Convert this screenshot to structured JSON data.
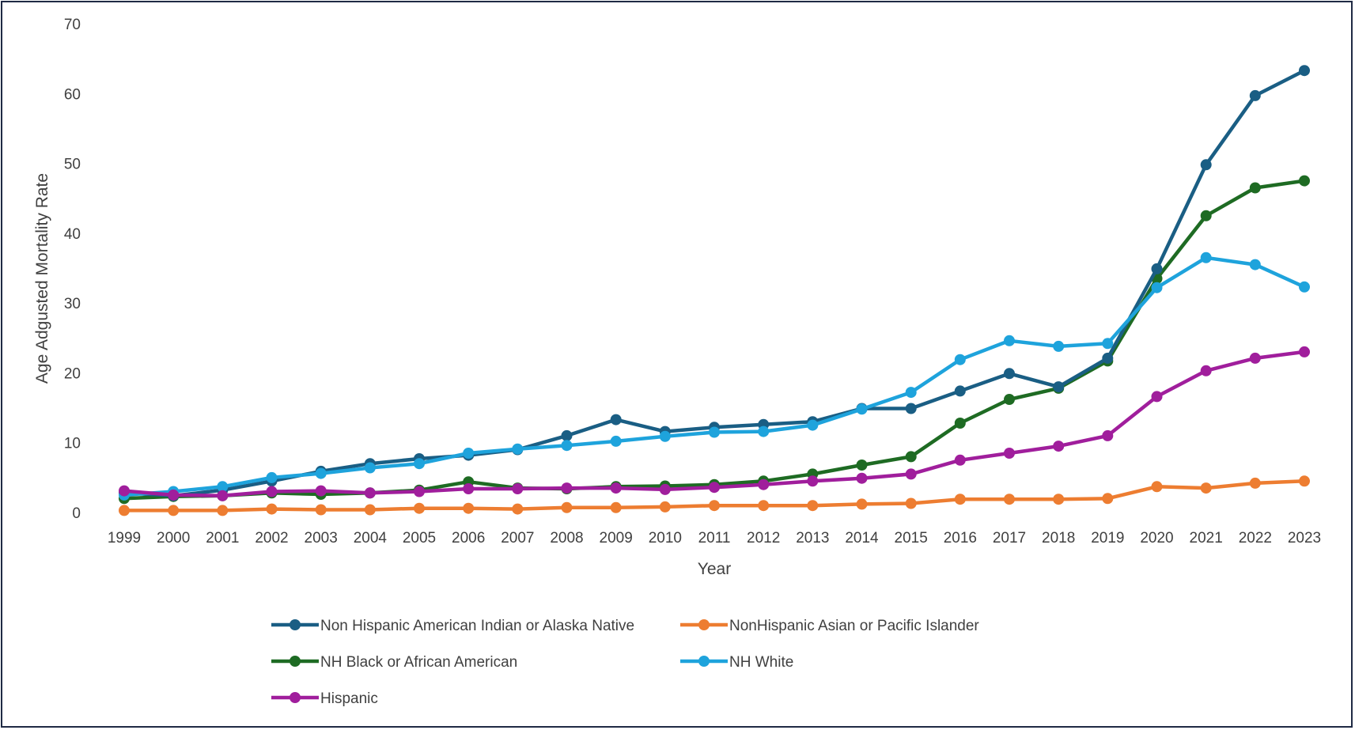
{
  "chart_data": {
    "type": "line",
    "title": "",
    "xlabel": "Year",
    "ylabel": "Age Adgusted Mortality Rate",
    "ylim": [
      0,
      70
    ],
    "yticks": [
      0,
      10,
      20,
      30,
      40,
      50,
      60,
      70
    ],
    "grid": false,
    "legend_position": "bottom",
    "categories": [
      "1999",
      "2000",
      "2001",
      "2002",
      "2003",
      "2004",
      "2005",
      "2006",
      "2007",
      "2008",
      "2009",
      "2010",
      "2011",
      "2012",
      "2013",
      "2014",
      "2015",
      "2016",
      "2017",
      "2018",
      "2019",
      "2020",
      "2021",
      "2022",
      "2023"
    ],
    "series": [
      {
        "name": "Non Hispanic American Indian or Alaska Native",
        "color": "#1a5e84",
        "values": [
          2.8,
          2.4,
          3.2,
          4.5,
          5.9,
          7.0,
          7.7,
          8.2,
          9.0,
          11.0,
          13.3,
          11.6,
          12.2,
          12.6,
          13.0,
          14.9,
          14.9,
          17.4,
          19.9,
          18.0,
          22.1,
          34.9,
          49.8,
          59.7,
          63.3
        ]
      },
      {
        "name": "NonHispanic Asian or Pacific Islander",
        "color": "#ed7d31",
        "values": [
          0.3,
          0.3,
          0.3,
          0.5,
          0.4,
          0.4,
          0.6,
          0.6,
          0.5,
          0.7,
          0.7,
          0.8,
          1.0,
          1.0,
          1.0,
          1.2,
          1.3,
          1.9,
          1.9,
          1.9,
          2.0,
          3.7,
          3.5,
          4.2,
          4.5
        ]
      },
      {
        "name": "NH Black or African American",
        "color": "#1e6b23",
        "values": [
          2.0,
          2.3,
          2.4,
          2.8,
          2.6,
          2.8,
          3.2,
          4.4,
          3.5,
          3.4,
          3.7,
          3.8,
          4.0,
          4.5,
          5.5,
          6.8,
          8.0,
          12.8,
          16.2,
          17.8,
          21.7,
          33.5,
          42.5,
          46.5,
          47.5
        ]
      },
      {
        "name": "NH White",
        "color": "#1ea3dc",
        "values": [
          2.5,
          3.0,
          3.7,
          5.0,
          5.6,
          6.4,
          7.0,
          8.5,
          9.1,
          9.6,
          10.2,
          10.9,
          11.5,
          11.6,
          12.5,
          14.8,
          17.2,
          21.9,
          24.6,
          23.8,
          24.2,
          32.2,
          36.5,
          35.5,
          32.3
        ]
      },
      {
        "name": "Hispanic",
        "color": "#a01e9c",
        "values": [
          3.1,
          2.5,
          2.4,
          3.0,
          3.1,
          2.8,
          3.0,
          3.4,
          3.4,
          3.5,
          3.5,
          3.3,
          3.6,
          4.0,
          4.5,
          4.9,
          5.5,
          7.5,
          8.5,
          9.5,
          11.0,
          16.6,
          20.3,
          22.1,
          23.0
        ]
      }
    ]
  }
}
